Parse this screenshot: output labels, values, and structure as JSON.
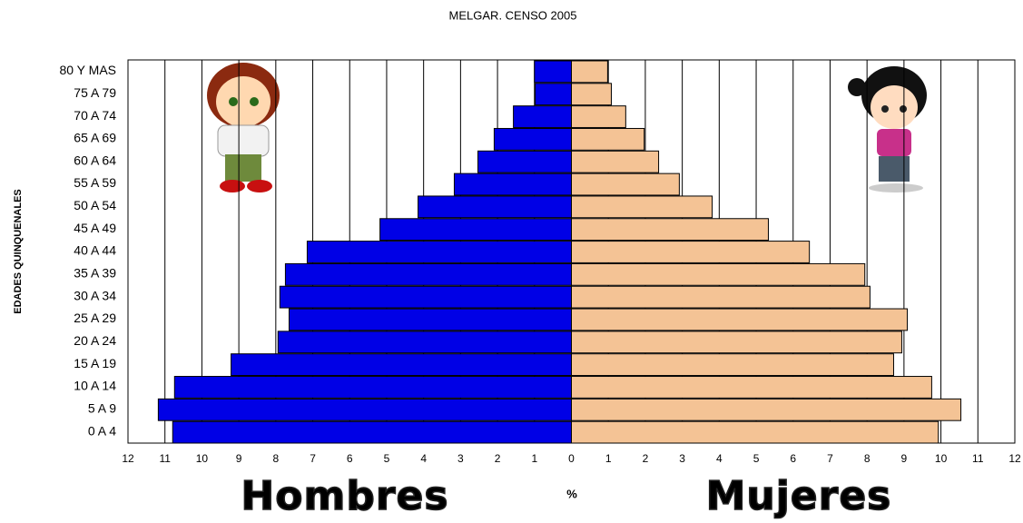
{
  "chart_data": {
    "type": "pyramid",
    "title": "MELGAR. CENSO 2005",
    "x_label": "%",
    "y_label": "EDADES QUINQUENALES",
    "categories": [
      "80 Y MAS",
      "75 A 79",
      "70 A 74",
      "65 A 69",
      "60 A 64",
      "55 A 59",
      "50 A 54",
      "45 A 49",
      "40 A 44",
      "35 A 39",
      "30 A 34",
      "25 A 29",
      "20 A 24",
      "15 A 19",
      "10 A 14",
      "5 A 9",
      "0 A 4"
    ],
    "series": [
      {
        "name": "Hombres",
        "color": "#0000e6",
        "values": [
          -1.0,
          -0.98,
          -1.57,
          -2.09,
          -2.53,
          -3.17,
          -4.15,
          -5.18,
          -7.15,
          -7.74,
          -7.89,
          -7.64,
          -7.94,
          -9.21,
          -10.74,
          -11.18,
          -10.79
        ]
      },
      {
        "name": "Mujeres",
        "color": "#f4c395",
        "values": [
          0.98,
          1.08,
          1.47,
          1.97,
          2.36,
          2.92,
          3.81,
          5.33,
          6.44,
          7.94,
          8.08,
          9.09,
          8.94,
          8.72,
          9.75,
          10.54,
          9.93
        ]
      }
    ],
    "xlim": [
      -12,
      12
    ],
    "xticks": [
      {
        "value": -12,
        "label": "12"
      },
      {
        "value": -11,
        "label": "11"
      },
      {
        "value": -10,
        "label": "10"
      },
      {
        "value": -9,
        "label": "9"
      },
      {
        "value": -8,
        "label": "8"
      },
      {
        "value": -7,
        "label": "7"
      },
      {
        "value": -6,
        "label": "6"
      },
      {
        "value": -5,
        "label": "5"
      },
      {
        "value": -4,
        "label": "4"
      },
      {
        "value": -3,
        "label": "3"
      },
      {
        "value": -2,
        "label": "2"
      },
      {
        "value": -1,
        "label": "1"
      },
      0,
      1,
      2,
      3,
      4,
      5,
      6,
      7,
      8,
      9,
      10,
      11,
      12
    ],
    "grid": true
  }
}
